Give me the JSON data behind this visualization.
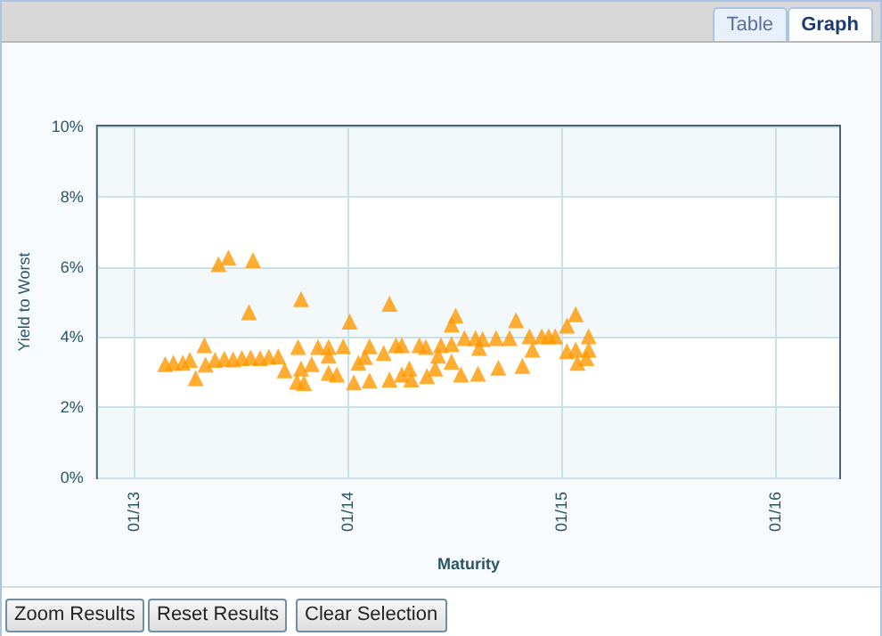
{
  "chart_data": {
    "type": "scatter",
    "xlabel": "Maturity",
    "ylabel": "Yield to Worst",
    "annotations": [
      "Table",
      "Graph",
      "Zoom Results",
      "Reset Results",
      "Clear Selection"
    ],
    "x": [
      "2013-02-24",
      "2013-03-10",
      "2013-03-26",
      "2013-04-07",
      "2013-04-17",
      "2013-05-02",
      "2013-05-04",
      "2013-05-26",
      "2013-06-12",
      "2013-07-24",
      "2013-07-17",
      "2013-05-20",
      "2013-06-05",
      "2013-06-20",
      "2013-07-05",
      "2013-07-20",
      "2013-08-05",
      "2013-08-20",
      "2013-09-05",
      "2013-09-16",
      "2013-10-09",
      "2013-10-14",
      "2013-10-14",
      "2013-10-07",
      "2013-10-19",
      "2013-11-01",
      "2013-11-12",
      "2013-11-30",
      "2013-11-30",
      "2013-11-30",
      "2013-12-14",
      "2013-12-25",
      "2014-01-05",
      "2014-01-12",
      "2014-01-20",
      "2014-02-08",
      "2014-02-08",
      "2014-01-31",
      "2014-03-04",
      "2014-03-14",
      "2014-03-14",
      "2014-03-25",
      "2014-04-04",
      "2014-04-04",
      "2014-04-17",
      "2014-04-20",
      "2014-05-04",
      "2014-05-15",
      "2014-05-17",
      "2014-05-31",
      "2014-06-05",
      "2014-06-10",
      "2014-06-28",
      "2014-07-05",
      "2014-06-28",
      "2014-06-28",
      "2014-07-14",
      "2014-07-20",
      "2014-08-08",
      "2014-08-12",
      "2014-08-14",
      "2014-08-20",
      "2014-09-16",
      "2014-09-12",
      "2014-10-16",
      "2014-10-05",
      "2014-10-27",
      "2014-11-13",
      "2014-11-08",
      "2014-11-29",
      "2014-12-11",
      "2014-12-22",
      "2015-01-11",
      "2015-01-26",
      "2015-02-17",
      "2015-01-11",
      "2015-01-26",
      "2015-02-17",
      "2015-01-29",
      "2015-02-13"
    ],
    "values": [
      3.23,
      3.27,
      3.27,
      3.35,
      2.83,
      3.77,
      3.22,
      6.08,
      6.26,
      6.19,
      4.71,
      3.35,
      3.38,
      3.36,
      3.4,
      3.42,
      3.4,
      3.44,
      3.45,
      3.05,
      3.72,
      5.08,
      3.1,
      2.73,
      2.69,
      3.23,
      3.72,
      3.72,
      3.47,
      2.98,
      2.93,
      3.74,
      4.44,
      2.71,
      3.27,
      2.76,
      3.74,
      3.43,
      3.55,
      4.95,
      2.79,
      3.77,
      3.77,
      2.93,
      3.1,
      2.79,
      3.77,
      3.72,
      2.89,
      3.1,
      3.47,
      3.77,
      4.36,
      4.61,
      3.8,
      3.3,
      2.93,
      3.97,
      3.97,
      2.96,
      3.69,
      3.94,
      3.13,
      3.97,
      4.48,
      3.97,
      3.18,
      3.64,
      4.02,
      4.02,
      4.02,
      4.02,
      4.33,
      4.65,
      4.02,
      3.6,
      3.64,
      3.64,
      3.27,
      3.4
    ],
    "color": "#ff9900",
    "marker": "triangle",
    "grid": true,
    "xlim": [
      "2012-11-01",
      "2016-04-20"
    ],
    "xticks": [
      {
        "value": "2013-01-01",
        "label": "01/13"
      },
      {
        "value": "2014-01-01",
        "label": "01/14"
      },
      {
        "value": "2015-01-01",
        "label": "01/15"
      },
      {
        "value": "2016-01-01",
        "label": "01/16"
      }
    ],
    "ylim": [
      0,
      10
    ],
    "yticks": [
      {
        "value": 0,
        "label": "0%"
      },
      {
        "value": 2,
        "label": "2%"
      },
      {
        "value": 4,
        "label": "4%"
      },
      {
        "value": 6,
        "label": "6%"
      },
      {
        "value": 8,
        "label": "8%"
      },
      {
        "value": 10,
        "label": "10%"
      }
    ]
  }
}
